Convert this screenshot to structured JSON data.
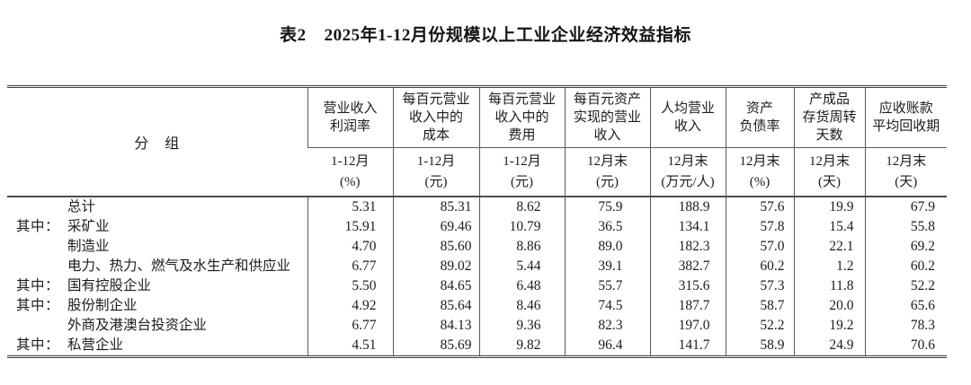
{
  "title": {
    "tag": "表2",
    "text": "2025年1-12月份规模以上工业企业经济效益指标"
  },
  "colors": {
    "text": "#1c1c1c",
    "line": "#555555",
    "background": "#ffffff"
  },
  "table": {
    "group_header": "分　组",
    "columns": [
      {
        "name": "营业收入\n利润率",
        "period": "1-12月",
        "unit": "(%)"
      },
      {
        "name": "每百元营业\n收入中的\n成本",
        "period": "1-12月",
        "unit": "(元)"
      },
      {
        "name": "每百元营业\n收入中的\n费用",
        "period": "1-12月",
        "unit": "(元)"
      },
      {
        "name": "每百元资产\n实现的营业\n收入",
        "period": "12月末",
        "unit": "(元)"
      },
      {
        "name": "人均营业\n收入",
        "period": "12月末",
        "unit": "(万元/人)"
      },
      {
        "name": "资产\n负债率",
        "period": "12月末",
        "unit": "(%)"
      },
      {
        "name": "产成品\n存货周转\n天数",
        "period": "12月末",
        "unit": "(天)"
      },
      {
        "name": "应收账款\n平均回收期",
        "period": "12月末",
        "unit": "(天)"
      }
    ],
    "rows": [
      {
        "prefix": "",
        "label": "总计",
        "values": [
          "5.31",
          "85.31",
          "8.62",
          "75.9",
          "188.9",
          "57.6",
          "19.9",
          "67.9"
        ]
      },
      {
        "prefix": "其中：",
        "label": "采矿业",
        "values": [
          "15.91",
          "69.46",
          "10.79",
          "36.5",
          "134.1",
          "57.8",
          "15.4",
          "55.8"
        ]
      },
      {
        "prefix": "",
        "label": "制造业",
        "values": [
          "4.70",
          "85.60",
          "8.86",
          "89.0",
          "182.3",
          "57.0",
          "22.1",
          "69.2"
        ]
      },
      {
        "prefix": "",
        "label": "电力、热力、燃气及水生产和供应业",
        "values": [
          "6.77",
          "89.02",
          "5.44",
          "39.1",
          "382.7",
          "60.2",
          "1.2",
          "60.2"
        ]
      },
      {
        "prefix": "其中：",
        "label": "国有控股企业",
        "values": [
          "5.50",
          "84.65",
          "6.48",
          "55.7",
          "315.6",
          "57.3",
          "11.8",
          "52.2"
        ]
      },
      {
        "prefix": "其中：",
        "label": "股份制企业",
        "values": [
          "4.92",
          "85.64",
          "8.46",
          "74.5",
          "187.7",
          "58.7",
          "20.0",
          "65.6"
        ]
      },
      {
        "prefix": "",
        "label": "外商及港澳台投资企业",
        "values": [
          "6.77",
          "84.13",
          "9.36",
          "82.3",
          "197.0",
          "52.2",
          "19.2",
          "78.3"
        ]
      },
      {
        "prefix": "其中：",
        "label": "私营企业",
        "values": [
          "4.51",
          "85.69",
          "9.82",
          "96.4",
          "141.7",
          "58.9",
          "24.9",
          "70.6"
        ]
      }
    ]
  }
}
